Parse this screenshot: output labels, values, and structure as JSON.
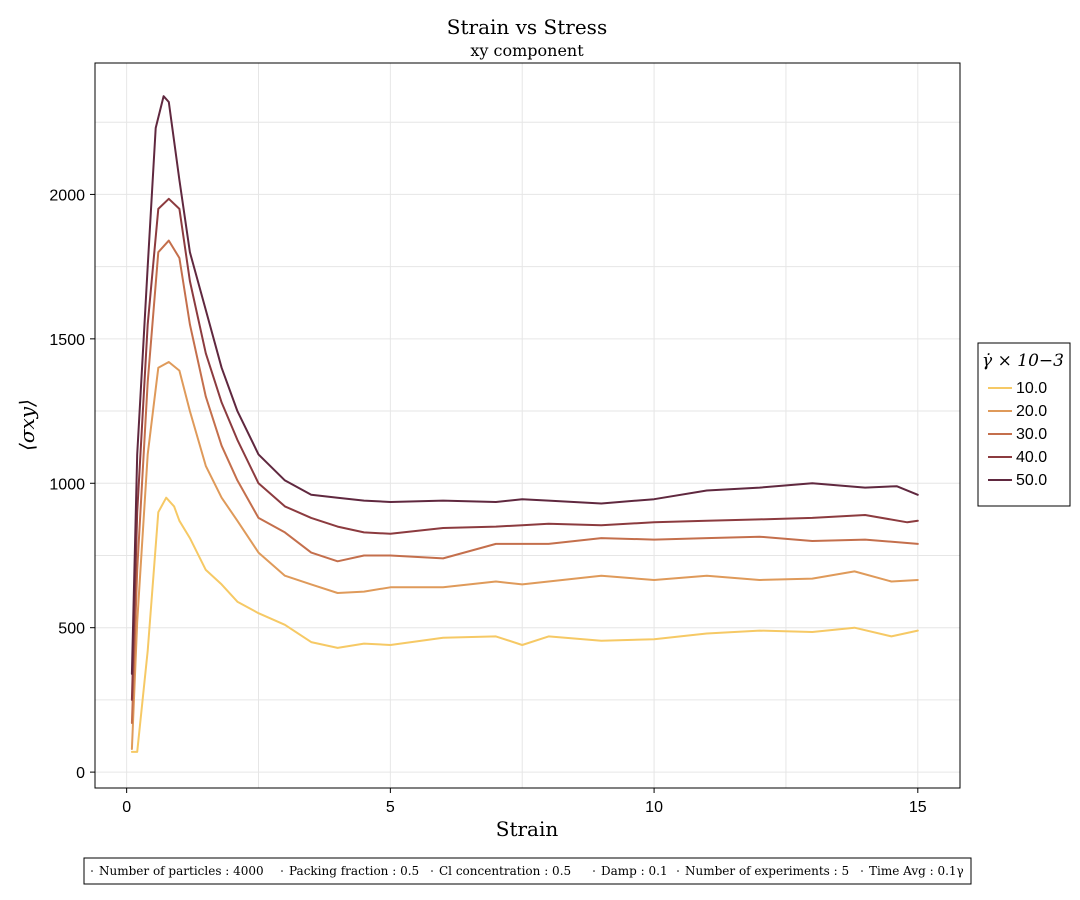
{
  "chart_data": {
    "type": "line",
    "title": "Strain vs Stress",
    "subtitle": "xy component",
    "xlabel": "Strain",
    "ylabel": "⟨σxy⟩",
    "xlim": [
      -0.6,
      15.8
    ],
    "ylim": [
      -55,
      2455
    ],
    "xticks": [
      0,
      5,
      10,
      15
    ],
    "yticks": [
      0,
      500,
      1000,
      1500,
      2000
    ],
    "grid": true,
    "legend": {
      "title": "γ̇ × 10−3",
      "placement": "right"
    },
    "series": [
      {
        "name": "10.0",
        "color": "#f6c965",
        "x": [
          0.1,
          0.2,
          0.4,
          0.6,
          0.75,
          0.9,
          1.0,
          1.2,
          1.5,
          1.8,
          2.1,
          2.5,
          3.0,
          3.5,
          4.0,
          4.5,
          5.0,
          6.0,
          7.0,
          7.5,
          8.0,
          9.0,
          10.0,
          11.0,
          12.0,
          13.0,
          13.8,
          14.5,
          15.0
        ],
        "y": [
          70,
          70,
          420,
          900,
          950,
          920,
          870,
          810,
          700,
          650,
          590,
          550,
          510,
          450,
          430,
          445,
          440,
          465,
          470,
          440,
          470,
          455,
          460,
          480,
          490,
          485,
          500,
          470,
          490
        ]
      },
      {
        "name": "20.0",
        "color": "#df9a5a",
        "x": [
          0.1,
          0.2,
          0.4,
          0.6,
          0.8,
          1.0,
          1.2,
          1.5,
          1.8,
          2.1,
          2.5,
          3.0,
          3.5,
          4.0,
          4.5,
          5.0,
          6.0,
          7.0,
          7.5,
          8.0,
          9.0,
          10.0,
          11.0,
          12.0,
          13.0,
          13.8,
          14.5,
          15.0
        ],
        "y": [
          80,
          520,
          1100,
          1400,
          1420,
          1390,
          1250,
          1060,
          950,
          870,
          760,
          680,
          650,
          620,
          625,
          640,
          640,
          660,
          650,
          660,
          680,
          665,
          680,
          665,
          670,
          695,
          660,
          665
        ]
      },
      {
        "name": "30.0",
        "color": "#c46f4c",
        "x": [
          0.1,
          0.2,
          0.4,
          0.6,
          0.8,
          1.0,
          1.2,
          1.5,
          1.8,
          2.1,
          2.5,
          3.0,
          3.5,
          4.0,
          4.5,
          5.0,
          6.0,
          7.0,
          7.5,
          8.0,
          9.0,
          10.0,
          11.0,
          12.0,
          13.0,
          14.0,
          15.0
        ],
        "y": [
          170,
          700,
          1350,
          1800,
          1840,
          1780,
          1550,
          1300,
          1130,
          1010,
          880,
          830,
          760,
          730,
          750,
          750,
          740,
          790,
          790,
          790,
          810,
          805,
          810,
          815,
          800,
          805,
          790
        ]
      },
      {
        "name": "40.0",
        "color": "#8c3b3f",
        "x": [
          0.1,
          0.2,
          0.4,
          0.6,
          0.8,
          1.0,
          1.2,
          1.5,
          1.8,
          2.1,
          2.5,
          3.0,
          3.5,
          4.0,
          4.5,
          5.0,
          6.0,
          7.0,
          7.5,
          8.0,
          9.0,
          10.0,
          11.0,
          12.0,
          13.0,
          14.0,
          14.8,
          15.0
        ],
        "y": [
          250,
          900,
          1550,
          1950,
          1985,
          1950,
          1700,
          1450,
          1280,
          1150,
          1000,
          920,
          880,
          850,
          830,
          825,
          845,
          850,
          855,
          860,
          855,
          865,
          870,
          875,
          880,
          890,
          865,
          870
        ]
      },
      {
        "name": "50.0",
        "color": "#60283f",
        "x": [
          0.1,
          0.2,
          0.4,
          0.55,
          0.7,
          0.8,
          1.0,
          1.2,
          1.5,
          1.8,
          2.1,
          2.5,
          3.0,
          3.5,
          4.0,
          4.5,
          5.0,
          6.0,
          7.0,
          7.5,
          8.0,
          9.0,
          10.0,
          11.0,
          12.0,
          13.0,
          14.0,
          14.6,
          15.0
        ],
        "y": [
          340,
          1100,
          1750,
          2230,
          2340,
          2320,
          2050,
          1800,
          1600,
          1400,
          1250,
          1100,
          1010,
          960,
          950,
          940,
          935,
          940,
          935,
          945,
          940,
          930,
          945,
          975,
          985,
          1000,
          985,
          990,
          960
        ]
      }
    ]
  },
  "footer": {
    "params": [
      "Number of particles : 4000",
      "Packing fraction : 0.5",
      "Cl concentration : 0.5",
      "Damp : 0.1",
      "Number of experiments : 5",
      "Time Avg : 0.1γ"
    ]
  }
}
